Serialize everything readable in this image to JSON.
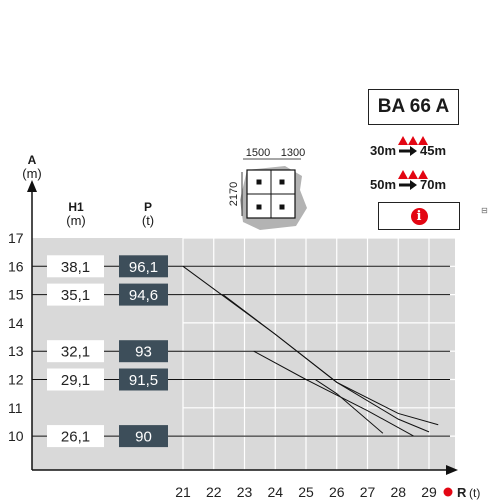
{
  "model": "BA 66 A",
  "wind_ranges": [
    {
      "from": "30m",
      "to": "45m"
    },
    {
      "from": "50m",
      "to": "70m"
    }
  ],
  "info_icon": "info-icon",
  "side_mark": "⊟",
  "footprint": {
    "width_a": "1500",
    "width_b": "1300",
    "depth": "2170"
  },
  "axis_titles": {
    "a": "A",
    "a_unit": "(m)",
    "h1": "H1",
    "h1_unit": "(m)",
    "p": "P",
    "p_unit": "(t)",
    "r": "R",
    "r_unit": "(t)"
  },
  "colors": {
    "accent": "#e30613",
    "grid_bg": "#d9d9d9",
    "value_box": "#3d4e5a"
  },
  "chart_data": {
    "type": "line",
    "xlabel": "R (t)",
    "ylabel": "A (m)",
    "xlim": [
      21,
      29
    ],
    "ylim": [
      10,
      17
    ],
    "x_ticks": [
      "21",
      "22",
      "23",
      "24",
      "25",
      "26",
      "27",
      "28",
      "29"
    ],
    "y_ticks": [
      "17",
      "16",
      "15",
      "14",
      "13",
      "12",
      "11",
      "10"
    ],
    "rows": [
      {
        "level": 16,
        "h1": "38,1",
        "p": "96,1"
      },
      {
        "level": 15,
        "h1": "35,1",
        "p": "94,6"
      },
      {
        "level": 13,
        "h1": "32,1",
        "p": "93"
      },
      {
        "level": 12,
        "h1": "29,1",
        "p": "91,5"
      },
      {
        "level": 10,
        "h1": "26,1",
        "p": "90"
      }
    ],
    "series": [
      {
        "points": [
          [
            21,
            16
          ],
          [
            22,
            15.2
          ],
          [
            24,
            13.6
          ],
          [
            26,
            11.9
          ],
          [
            28,
            10.8
          ],
          [
            29.3,
            10.4
          ]
        ]
      },
      {
        "points": [
          [
            22.3,
            15
          ],
          [
            24,
            13.6
          ],
          [
            26,
            11.9
          ],
          [
            28,
            10.6
          ],
          [
            29,
            10.15
          ]
        ]
      },
      {
        "points": [
          [
            23.3,
            13
          ],
          [
            25,
            12
          ],
          [
            27,
            10.9
          ],
          [
            28.5,
            10
          ]
        ]
      },
      {
        "points": [
          [
            25.3,
            12
          ],
          [
            26,
            11.5
          ],
          [
            27.5,
            10.1
          ]
        ]
      }
    ]
  }
}
